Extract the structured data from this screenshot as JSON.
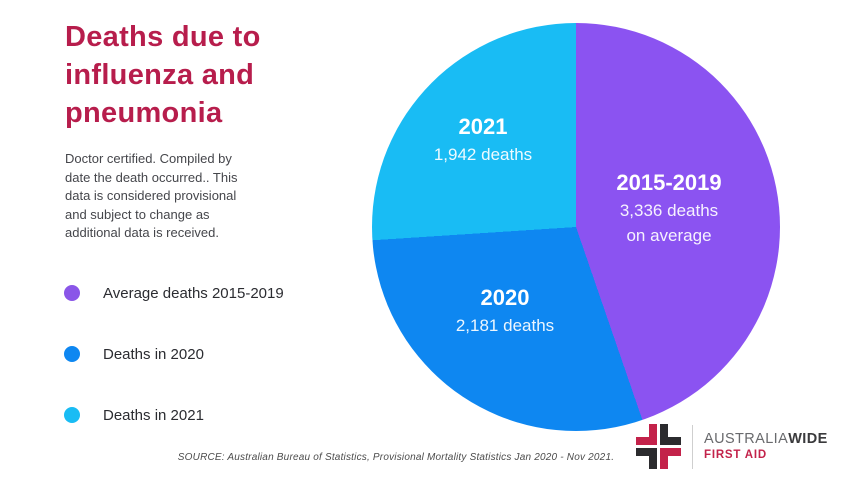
{
  "page": {
    "background": "#ffffff"
  },
  "header": {
    "title_lines": [
      "Deaths due to",
      "influenza and",
      "pneumonia"
    ],
    "title_color": "#b71d4c"
  },
  "description": {
    "lines": [
      "Doctor certified. Compiled by",
      "date the death occurred.. This",
      "data is considered provisional",
      "and subject to change as",
      "additional data is received."
    ]
  },
  "legend": {
    "items": [
      {
        "label": "Average deaths 2015-2019",
        "color": "#8a56e8"
      },
      {
        "label": "Deaths in 2020",
        "color": "#0e87f1"
      },
      {
        "label": "Deaths in 2021",
        "color": "#19bcf4"
      }
    ]
  },
  "chart_data": {
    "type": "pie",
    "title": "Deaths due to influenza and pneumonia",
    "start_angle_deg": 0,
    "direction": "clockwise",
    "legend_position": "left",
    "slices": [
      {
        "name": "Average deaths 2015-2019",
        "label": "2015-2019",
        "detail_lines": [
          "3,336 deaths",
          "on average"
        ],
        "value": 3336,
        "color": "#8b53f1"
      },
      {
        "name": "Deaths in 2020",
        "label": "2020",
        "detail_lines": [
          "2,181 deaths"
        ],
        "value": 2181,
        "color": "#0e87f1"
      },
      {
        "name": "Deaths in 2021",
        "label": "2021",
        "detail_lines": [
          "1,942 deaths"
        ],
        "value": 1942,
        "color": "#19bcf4"
      }
    ]
  },
  "footer": {
    "source": "SOURCE: Australian Bureau of Statistics, Provisional Mortality Statistics Jan 2020 - Nov 2021.",
    "logo": {
      "brand_regular": "AUSTRALIA",
      "brand_bold": "WIDE",
      "brand_sub": "FIRST AID",
      "red": "#c3224a",
      "black": "#2b2b2e"
    }
  }
}
